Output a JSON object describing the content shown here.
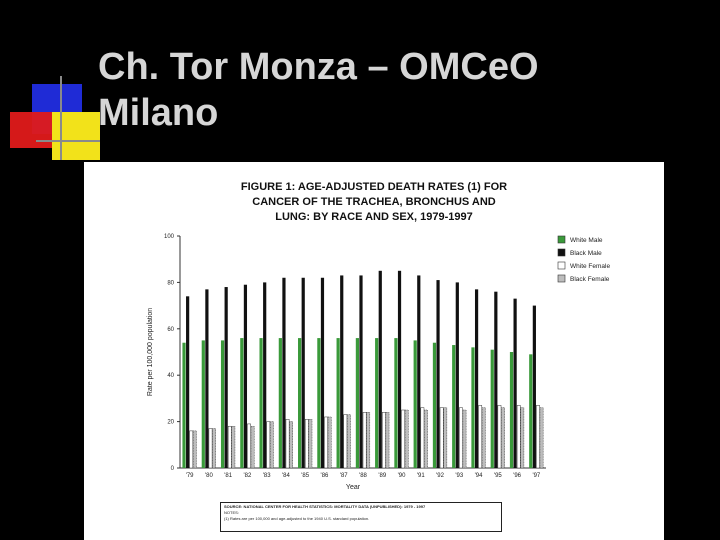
{
  "slide": {
    "title": "Ch. Tor Monza – OMCeO\nMilano"
  },
  "chart_data": {
    "type": "bar",
    "title_lines": [
      "FIGURE 1: AGE-ADJUSTED DEATH RATES (1) FOR",
      "CANCER OF THE TRACHEA, BRONCHUS AND",
      "LUNG: BY RACE AND SEX, 1979-1997"
    ],
    "xlabel": "Year",
    "ylabel": "Rate per 100,000 population",
    "ylim": [
      0,
      100
    ],
    "yticks": [
      0,
      20,
      40,
      60,
      80,
      100
    ],
    "categories": [
      "'79",
      "'80",
      "'81",
      "'82",
      "'83",
      "'84",
      "'85",
      "'86",
      "'87",
      "'88",
      "'89",
      "'90",
      "'91",
      "'92",
      "'93",
      "'94",
      "'95",
      "'96",
      "'97"
    ],
    "series": [
      {
        "name": "White Male",
        "color": "#3a9a3a",
        "values": [
          54,
          55,
          55,
          56,
          56,
          56,
          56,
          56,
          56,
          56,
          56,
          56,
          55,
          54,
          53,
          52,
          51,
          50,
          49
        ]
      },
      {
        "name": "Black Male",
        "color": "#111111",
        "values": [
          74,
          77,
          78,
          79,
          80,
          82,
          82,
          82,
          83,
          83,
          85,
          85,
          83,
          81,
          80,
          77,
          76,
          73,
          70
        ]
      },
      {
        "name": "White Female",
        "color": "#ffffff",
        "values": [
          16,
          17,
          18,
          19,
          20,
          21,
          21,
          22,
          23,
          24,
          24,
          25,
          26,
          26,
          26,
          27,
          27,
          27,
          27
        ]
      },
      {
        "name": "Black Female",
        "color": "#bdbdbd",
        "values": [
          16,
          17,
          18,
          18,
          20,
          20,
          21,
          22,
          23,
          24,
          24,
          25,
          25,
          26,
          25,
          26,
          26,
          26,
          26
        ]
      }
    ],
    "legend_position": "top-right",
    "grid": false,
    "source_lines": [
      "SOURCE: NATIONAL CENTER FOR HEALTH STATISTICS: MORTALITY DATA (UNPUBLISHED): 1979 - 1997",
      "NOTES:",
      "(1) Rates are per 100,000 and age-adjusted to the 1940 U.S. standard population."
    ]
  }
}
